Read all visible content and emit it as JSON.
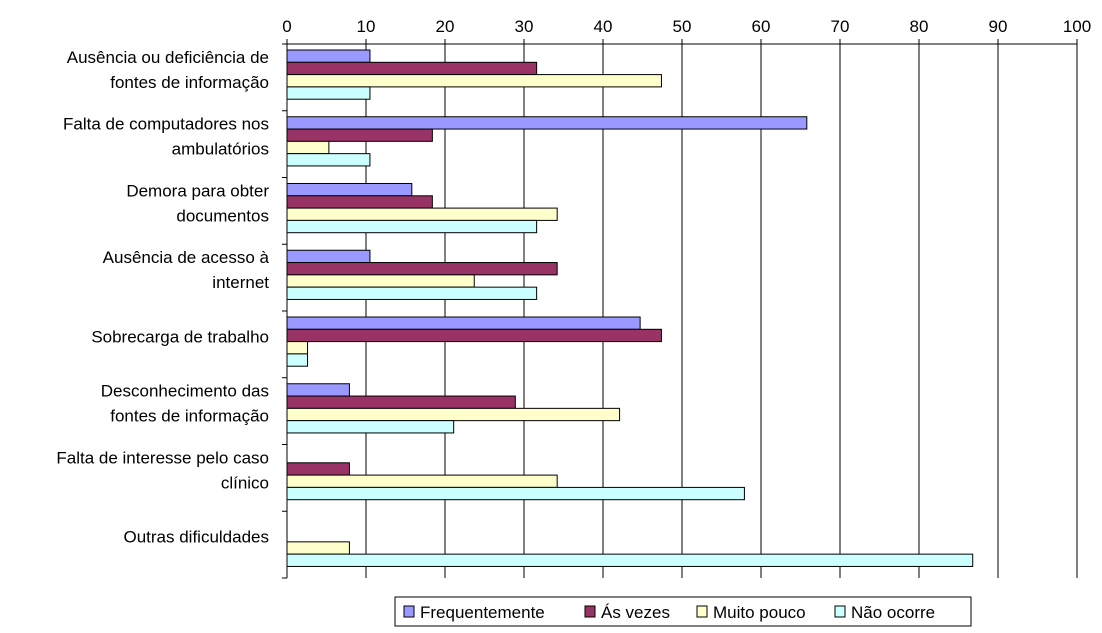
{
  "chart_data": {
    "type": "bar",
    "orientation": "horizontal",
    "title": "",
    "xlabel": "",
    "ylabel": "",
    "xlim": [
      0,
      100
    ],
    "x_ticks": [
      0,
      10,
      20,
      30,
      40,
      50,
      60,
      70,
      80,
      90,
      100
    ],
    "x_axis_position": "top",
    "grid": "vertical",
    "legend_position": "bottom",
    "categories": [
      [
        "Ausência ou deficiência de",
        "fontes de informação"
      ],
      [
        "Falta de computadores nos",
        "ambulatórios"
      ],
      [
        "Demora para obter",
        "documentos"
      ],
      [
        "Ausência de acesso à",
        "internet"
      ],
      [
        "Sobrecarga de trabalho"
      ],
      [
        "Desconhecimento das",
        "fontes de informação"
      ],
      [
        "Falta de interesse pelo caso",
        "clínico"
      ],
      [
        "Outras dificuldades"
      ]
    ],
    "series": [
      {
        "name": "Frequentemente",
        "color": "#9999ff",
        "values": [
          10.5,
          65.8,
          15.8,
          10.5,
          44.7,
          7.9,
          0,
          0
        ]
      },
      {
        "name": "Ás vezes",
        "color": "#993366",
        "values": [
          31.6,
          18.4,
          18.4,
          34.2,
          47.4,
          28.9,
          7.9,
          0
        ]
      },
      {
        "name": "Muito pouco",
        "color": "#ffffcc",
        "values": [
          47.4,
          5.3,
          34.2,
          23.7,
          2.6,
          42.1,
          34.2,
          7.9
        ]
      },
      {
        "name": "Não ocorre",
        "color": "#ccffff",
        "values": [
          10.5,
          10.5,
          31.6,
          31.6,
          2.6,
          21.1,
          57.9,
          86.8
        ]
      }
    ]
  }
}
